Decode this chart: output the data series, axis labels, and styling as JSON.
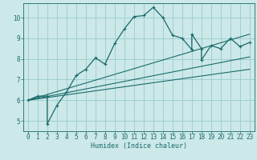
{
  "xlabel": "Humidex (Indice chaleur)",
  "bg_color": "#cce8e8",
  "grid_color": "#99cccc",
  "line_color": "#1a6b6b",
  "xlim": [
    -0.5,
    23.5
  ],
  "ylim": [
    4.5,
    10.7
  ],
  "yticks": [
    5,
    6,
    7,
    8,
    9,
    10
  ],
  "xticks": [
    0,
    1,
    2,
    3,
    4,
    5,
    6,
    7,
    8,
    9,
    10,
    11,
    12,
    13,
    14,
    15,
    16,
    17,
    18,
    19,
    20,
    21,
    22,
    23
  ],
  "main_x": [
    0,
    1,
    2,
    2,
    3,
    4,
    5,
    6,
    7,
    8,
    9,
    10,
    11,
    12,
    13,
    14,
    15,
    16,
    17,
    17,
    18,
    18,
    19,
    20,
    21,
    22,
    23
  ],
  "main_y": [
    6.0,
    6.2,
    6.2,
    4.85,
    5.75,
    6.4,
    7.2,
    7.5,
    8.05,
    7.75,
    8.75,
    9.45,
    10.05,
    10.1,
    10.5,
    10.0,
    9.15,
    9.0,
    8.45,
    9.2,
    8.5,
    7.95,
    8.65,
    8.5,
    9.0,
    8.6,
    8.8
  ],
  "line1_x": [
    0,
    23
  ],
  "line1_y": [
    6.0,
    7.5
  ],
  "line2_x": [
    0,
    23
  ],
  "line2_y": [
    6.0,
    8.1
  ],
  "line3_x": [
    0,
    23
  ],
  "line3_y": [
    6.0,
    9.2
  ]
}
